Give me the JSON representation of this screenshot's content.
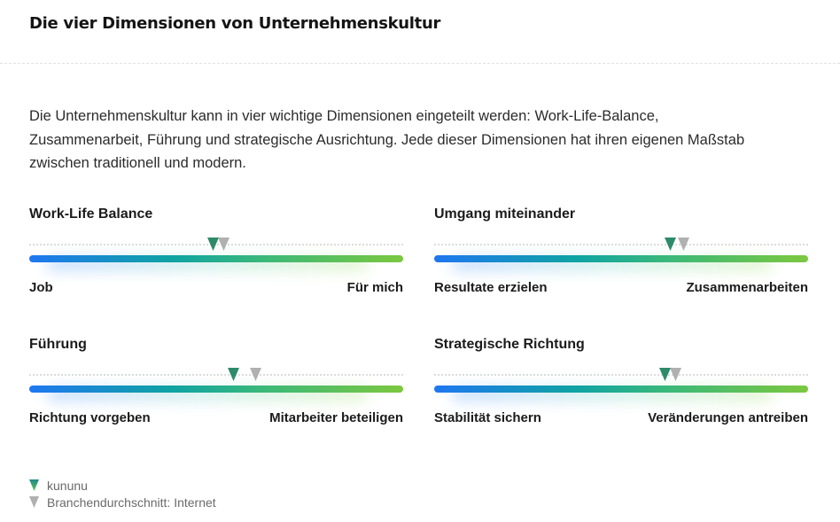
{
  "page": {
    "title": "Die vier Dimensionen von Unternehmenskultur",
    "intro": "Die Unternehmenskultur kann in vier wichtige Dimensionen eingeteilt werden: Work-Life-Balance, Zusammenarbeit, Führung und strategische Ausrichtung. Jede dieser Dimensionen hat ihren eigenen Maßstab zwischen traditionell und modern."
  },
  "colors": {
    "kununu_marker": "#2e8b6a",
    "industry_marker": "#b0b0b0",
    "bar_start": "#1f77f0",
    "bar_mid": "#0fa3a3",
    "bar_end": "#7cc83f"
  },
  "dimensions": [
    {
      "title": "Work-Life Balance",
      "left_label": "Job",
      "right_label": "Für mich",
      "kununu_value": 0.49,
      "industry_value": 0.52
    },
    {
      "title": "Umgang miteinander",
      "left_label": "Resultate erzielen",
      "right_label": "Zusammenarbeiten",
      "kununu_value": 0.63,
      "industry_value": 0.665
    },
    {
      "title": "Führung",
      "left_label": "Richtung vorgeben",
      "right_label": "Mitarbeiter beteiligen",
      "kununu_value": 0.545,
      "industry_value": 0.605
    },
    {
      "title": "Strategische Richtung",
      "left_label": "Stabilität sichern",
      "right_label": "Veränderungen antreiben",
      "kununu_value": 0.615,
      "industry_value": 0.645
    }
  ],
  "legend": {
    "kununu_label": "kununu",
    "industry_label": "Branchendurchschnitt: Internet",
    "kununu_icon": "triangle-down-green-icon",
    "industry_icon": "triangle-down-gray-icon"
  }
}
